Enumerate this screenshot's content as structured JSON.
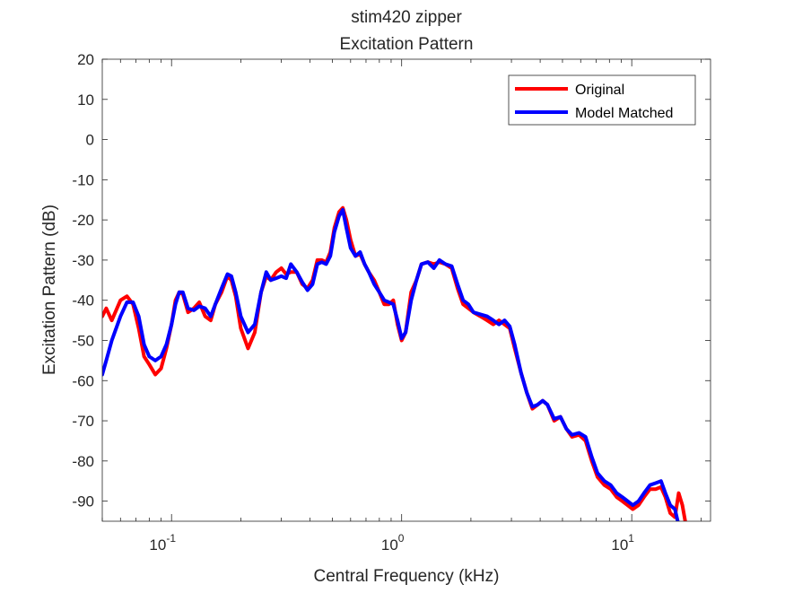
{
  "chart_data": {
    "type": "line",
    "title": "stim420 zipper",
    "subtitle": "Excitation Pattern",
    "xlabel": "Central Frequency (kHz)",
    "ylabel": "Excitation Pattern (dB)",
    "xscale": "log",
    "xlim": [
      0.05,
      22
    ],
    "ylim": [
      -95,
      20
    ],
    "yticks": [
      20,
      10,
      0,
      -10,
      -20,
      -30,
      -40,
      -50,
      -60,
      -70,
      -80,
      -90
    ],
    "xticks": [
      {
        "value": 0.1,
        "base": "10",
        "exp": "-1"
      },
      {
        "value": 1,
        "base": "10",
        "exp": "0"
      },
      {
        "value": 10,
        "base": "10",
        "exp": "1"
      }
    ],
    "grid": false,
    "legend_position": "top-right",
    "series": [
      {
        "name": "Original",
        "color": "#ff0000",
        "points": [
          [
            0.05,
            -44
          ],
          [
            0.052,
            -42
          ],
          [
            0.055,
            -45
          ],
          [
            0.06,
            -40
          ],
          [
            0.064,
            -39
          ],
          [
            0.068,
            -41
          ],
          [
            0.072,
            -47
          ],
          [
            0.076,
            -54
          ],
          [
            0.08,
            -56
          ],
          [
            0.085,
            -58.5
          ],
          [
            0.09,
            -57
          ],
          [
            0.095,
            -52
          ],
          [
            0.1,
            -46
          ],
          [
            0.104,
            -40
          ],
          [
            0.108,
            -38
          ],
          [
            0.112,
            -38.5
          ],
          [
            0.118,
            -43
          ],
          [
            0.125,
            -42
          ],
          [
            0.132,
            -40.5
          ],
          [
            0.14,
            -44
          ],
          [
            0.148,
            -45
          ],
          [
            0.155,
            -41
          ],
          [
            0.165,
            -38
          ],
          [
            0.175,
            -34
          ],
          [
            0.182,
            -35
          ],
          [
            0.19,
            -39
          ],
          [
            0.2,
            -47
          ],
          [
            0.215,
            -52
          ],
          [
            0.23,
            -48
          ],
          [
            0.245,
            -38
          ],
          [
            0.258,
            -34
          ],
          [
            0.27,
            -35
          ],
          [
            0.285,
            -33
          ],
          [
            0.3,
            -32
          ],
          [
            0.315,
            -33.5
          ],
          [
            0.33,
            -33
          ],
          [
            0.35,
            -33
          ],
          [
            0.37,
            -36
          ],
          [
            0.39,
            -37
          ],
          [
            0.41,
            -35
          ],
          [
            0.43,
            -30
          ],
          [
            0.45,
            -30
          ],
          [
            0.47,
            -30.5
          ],
          [
            0.49,
            -28
          ],
          [
            0.51,
            -22
          ],
          [
            0.535,
            -18
          ],
          [
            0.555,
            -17
          ],
          [
            0.575,
            -20
          ],
          [
            0.6,
            -25
          ],
          [
            0.63,
            -29
          ],
          [
            0.66,
            -28.5
          ],
          [
            0.69,
            -31
          ],
          [
            0.72,
            -33
          ],
          [
            0.76,
            -35
          ],
          [
            0.8,
            -38
          ],
          [
            0.84,
            -41
          ],
          [
            0.88,
            -41
          ],
          [
            0.92,
            -40
          ],
          [
            0.96,
            -46
          ],
          [
            1.0,
            -50
          ],
          [
            1.04,
            -48
          ],
          [
            1.1,
            -38
          ],
          [
            1.16,
            -35
          ],
          [
            1.22,
            -31
          ],
          [
            1.3,
            -30.5
          ],
          [
            1.38,
            -31
          ],
          [
            1.46,
            -30.5
          ],
          [
            1.55,
            -31
          ],
          [
            1.65,
            -32
          ],
          [
            1.75,
            -37
          ],
          [
            1.85,
            -41
          ],
          [
            1.95,
            -42
          ],
          [
            2.05,
            -43
          ],
          [
            2.2,
            -44
          ],
          [
            2.35,
            -45
          ],
          [
            2.5,
            -46
          ],
          [
            2.65,
            -45
          ],
          [
            2.8,
            -46
          ],
          [
            2.95,
            -47
          ],
          [
            3.1,
            -52
          ],
          [
            3.3,
            -58
          ],
          [
            3.5,
            -63
          ],
          [
            3.7,
            -67
          ],
          [
            3.9,
            -66
          ],
          [
            4.1,
            -65
          ],
          [
            4.3,
            -66
          ],
          [
            4.6,
            -70
          ],
          [
            4.9,
            -69
          ],
          [
            5.2,
            -72
          ],
          [
            5.5,
            -74
          ],
          [
            5.9,
            -73.5
          ],
          [
            6.3,
            -75
          ],
          [
            6.7,
            -80
          ],
          [
            7.1,
            -84
          ],
          [
            7.6,
            -86
          ],
          [
            8.1,
            -87
          ],
          [
            8.6,
            -89
          ],
          [
            9.1,
            -90
          ],
          [
            9.6,
            -91
          ],
          [
            10.1,
            -92
          ],
          [
            10.7,
            -91
          ],
          [
            11.3,
            -89
          ],
          [
            12,
            -87
          ],
          [
            12.7,
            -87
          ],
          [
            13.4,
            -86.5
          ],
          [
            14,
            -89
          ],
          [
            14.7,
            -93
          ],
          [
            15.4,
            -94
          ],
          [
            16,
            -88
          ],
          [
            16.6,
            -91
          ],
          [
            17.2,
            -96
          ]
        ]
      },
      {
        "name": "Model Matched",
        "color": "#0000ff",
        "points": [
          [
            0.05,
            -58.5
          ],
          [
            0.052,
            -55
          ],
          [
            0.055,
            -50
          ],
          [
            0.06,
            -44
          ],
          [
            0.064,
            -40.5
          ],
          [
            0.068,
            -40.5
          ],
          [
            0.072,
            -44
          ],
          [
            0.076,
            -51
          ],
          [
            0.08,
            -54
          ],
          [
            0.085,
            -55
          ],
          [
            0.09,
            -54
          ],
          [
            0.095,
            -51
          ],
          [
            0.1,
            -46
          ],
          [
            0.104,
            -41
          ],
          [
            0.108,
            -38
          ],
          [
            0.112,
            -38
          ],
          [
            0.118,
            -42
          ],
          [
            0.125,
            -42.5
          ],
          [
            0.132,
            -41.5
          ],
          [
            0.14,
            -42
          ],
          [
            0.148,
            -44
          ],
          [
            0.155,
            -41
          ],
          [
            0.165,
            -37
          ],
          [
            0.175,
            -33.5
          ],
          [
            0.182,
            -34
          ],
          [
            0.19,
            -38
          ],
          [
            0.2,
            -44
          ],
          [
            0.215,
            -48
          ],
          [
            0.23,
            -46
          ],
          [
            0.245,
            -38
          ],
          [
            0.258,
            -33
          ],
          [
            0.27,
            -35
          ],
          [
            0.285,
            -34.5
          ],
          [
            0.3,
            -34
          ],
          [
            0.315,
            -34.5
          ],
          [
            0.33,
            -31
          ],
          [
            0.35,
            -33
          ],
          [
            0.37,
            -35.5
          ],
          [
            0.39,
            -37.5
          ],
          [
            0.41,
            -36
          ],
          [
            0.43,
            -31
          ],
          [
            0.45,
            -30.5
          ],
          [
            0.47,
            -31
          ],
          [
            0.49,
            -29
          ],
          [
            0.51,
            -23
          ],
          [
            0.535,
            -19
          ],
          [
            0.555,
            -17.5
          ],
          [
            0.575,
            -22
          ],
          [
            0.6,
            -27
          ],
          [
            0.63,
            -29
          ],
          [
            0.66,
            -28
          ],
          [
            0.69,
            -31
          ],
          [
            0.72,
            -33
          ],
          [
            0.76,
            -36
          ],
          [
            0.8,
            -38
          ],
          [
            0.84,
            -40
          ],
          [
            0.88,
            -40.5
          ],
          [
            0.92,
            -41
          ],
          [
            0.96,
            -45
          ],
          [
            1.0,
            -49.5
          ],
          [
            1.04,
            -48
          ],
          [
            1.1,
            -40
          ],
          [
            1.16,
            -35
          ],
          [
            1.22,
            -31
          ],
          [
            1.3,
            -30.5
          ],
          [
            1.38,
            -32
          ],
          [
            1.46,
            -30
          ],
          [
            1.55,
            -31
          ],
          [
            1.65,
            -31.5
          ],
          [
            1.75,
            -36
          ],
          [
            1.85,
            -40
          ],
          [
            1.95,
            -41
          ],
          [
            2.05,
            -43
          ],
          [
            2.2,
            -43.5
          ],
          [
            2.35,
            -44
          ],
          [
            2.5,
            -45
          ],
          [
            2.65,
            -46
          ],
          [
            2.8,
            -45
          ],
          [
            2.95,
            -46.5
          ],
          [
            3.1,
            -51
          ],
          [
            3.3,
            -58
          ],
          [
            3.5,
            -63
          ],
          [
            3.7,
            -66.5
          ],
          [
            3.9,
            -66
          ],
          [
            4.1,
            -65
          ],
          [
            4.3,
            -66
          ],
          [
            4.6,
            -69.5
          ],
          [
            4.9,
            -69
          ],
          [
            5.2,
            -72
          ],
          [
            5.5,
            -73.5
          ],
          [
            5.9,
            -73
          ],
          [
            6.3,
            -74
          ],
          [
            6.7,
            -79
          ],
          [
            7.1,
            -83
          ],
          [
            7.6,
            -85
          ],
          [
            8.1,
            -86
          ],
          [
            8.6,
            -88
          ],
          [
            9.1,
            -89
          ],
          [
            9.6,
            -90
          ],
          [
            10.1,
            -91
          ],
          [
            10.7,
            -90
          ],
          [
            11.3,
            -88
          ],
          [
            12,
            -86
          ],
          [
            12.7,
            -85.5
          ],
          [
            13.4,
            -85
          ],
          [
            14,
            -88
          ],
          [
            14.7,
            -91
          ],
          [
            15.4,
            -92
          ],
          [
            16,
            -96
          ]
        ]
      }
    ]
  }
}
